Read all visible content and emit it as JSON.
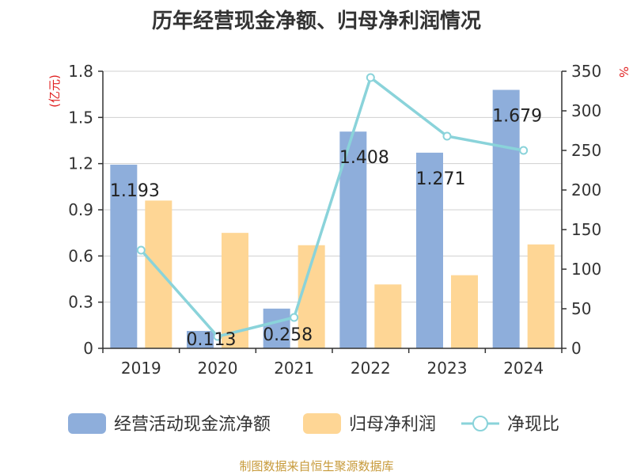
{
  "title": "历年经营现金净额、归母净利润情况",
  "source": "制图数据来自恒生聚源数据库",
  "chart_data": {
    "type": "bar",
    "categories": [
      "2019",
      "2020",
      "2021",
      "2022",
      "2023",
      "2024"
    ],
    "series": [
      {
        "name": "经营活动现金流净额",
        "type": "bar",
        "axis": "left",
        "values": [
          1.193,
          0.113,
          0.258,
          1.408,
          1.271,
          1.679
        ],
        "color": "#8eaedb"
      },
      {
        "name": "归母净利润",
        "type": "bar",
        "axis": "left",
        "values": [
          0.96,
          0.75,
          0.67,
          0.415,
          0.475,
          0.675
        ],
        "color": "#fed695"
      },
      {
        "name": "净现比",
        "type": "line",
        "axis": "right",
        "values": [
          124,
          15,
          39,
          342,
          268,
          250
        ],
        "color": "#8ad3da"
      }
    ],
    "data_labels": [
      "1.193",
      "0.113",
      "0.258",
      "1.408",
      "1.271",
      "1.679"
    ],
    "left_axis": {
      "label": "(亿元)",
      "ylim": [
        0,
        1.8
      ],
      "ticks": [
        "0",
        "0.3",
        "0.6",
        "0.9",
        "1.2",
        "1.5",
        "1.8"
      ]
    },
    "right_axis": {
      "label": "%",
      "ylim": [
        0,
        350
      ],
      "ticks": [
        "0",
        "50",
        "100",
        "150",
        "200",
        "250",
        "300",
        "350"
      ]
    },
    "grid": true,
    "legend_position": "bottom"
  }
}
